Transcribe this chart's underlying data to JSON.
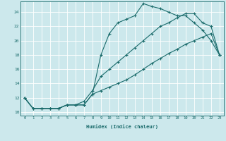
{
  "xlabel": "Humidex (Indice chaleur)",
  "bg_color": "#cce8ec",
  "grid_color": "#ffffff",
  "line_color": "#1a6b6b",
  "xlim": [
    -0.5,
    23.5
  ],
  "ylim": [
    9.5,
    25.5
  ],
  "xticks": [
    0,
    1,
    2,
    3,
    4,
    5,
    6,
    7,
    8,
    9,
    10,
    11,
    12,
    13,
    14,
    15,
    16,
    17,
    18,
    19,
    20,
    21,
    22,
    23
  ],
  "yticks": [
    10,
    12,
    14,
    16,
    18,
    20,
    22,
    24
  ],
  "line1_x": [
    0,
    1,
    2,
    3,
    4,
    5,
    6,
    7,
    8,
    9,
    10,
    11,
    12,
    13,
    14,
    15,
    16,
    17,
    18,
    19,
    20,
    21,
    22,
    23
  ],
  "line1_y": [
    12,
    10.5,
    10.5,
    10.5,
    10.5,
    11,
    11,
    11,
    12.5,
    18,
    21,
    22.5,
    23,
    23.5,
    25.2,
    24.8,
    24.5,
    24.0,
    23.5,
    23.5,
    22.5,
    21.5,
    20.0,
    18.0
  ],
  "line2_x": [
    0,
    1,
    2,
    3,
    4,
    5,
    6,
    7,
    8,
    9,
    10,
    11,
    12,
    13,
    14,
    15,
    16,
    17,
    18,
    19,
    20,
    21,
    22,
    23
  ],
  "line2_y": [
    12,
    10.5,
    10.5,
    10.5,
    10.5,
    11,
    11,
    11.5,
    13,
    15,
    16,
    17,
    18,
    19,
    20,
    21,
    22,
    22.5,
    23.2,
    23.8,
    23.8,
    22.5,
    22.0,
    18.0
  ],
  "line3_x": [
    0,
    1,
    2,
    3,
    4,
    5,
    6,
    7,
    8,
    9,
    10,
    11,
    12,
    13,
    14,
    15,
    16,
    17,
    18,
    19,
    20,
    21,
    22,
    23
  ],
  "line3_y": [
    12,
    10.5,
    10.5,
    10.5,
    10.5,
    11,
    11,
    11,
    12.5,
    13,
    13.5,
    14.0,
    14.5,
    15.2,
    16.0,
    16.8,
    17.5,
    18.2,
    18.8,
    19.5,
    20.0,
    20.5,
    21.0,
    18.0
  ]
}
